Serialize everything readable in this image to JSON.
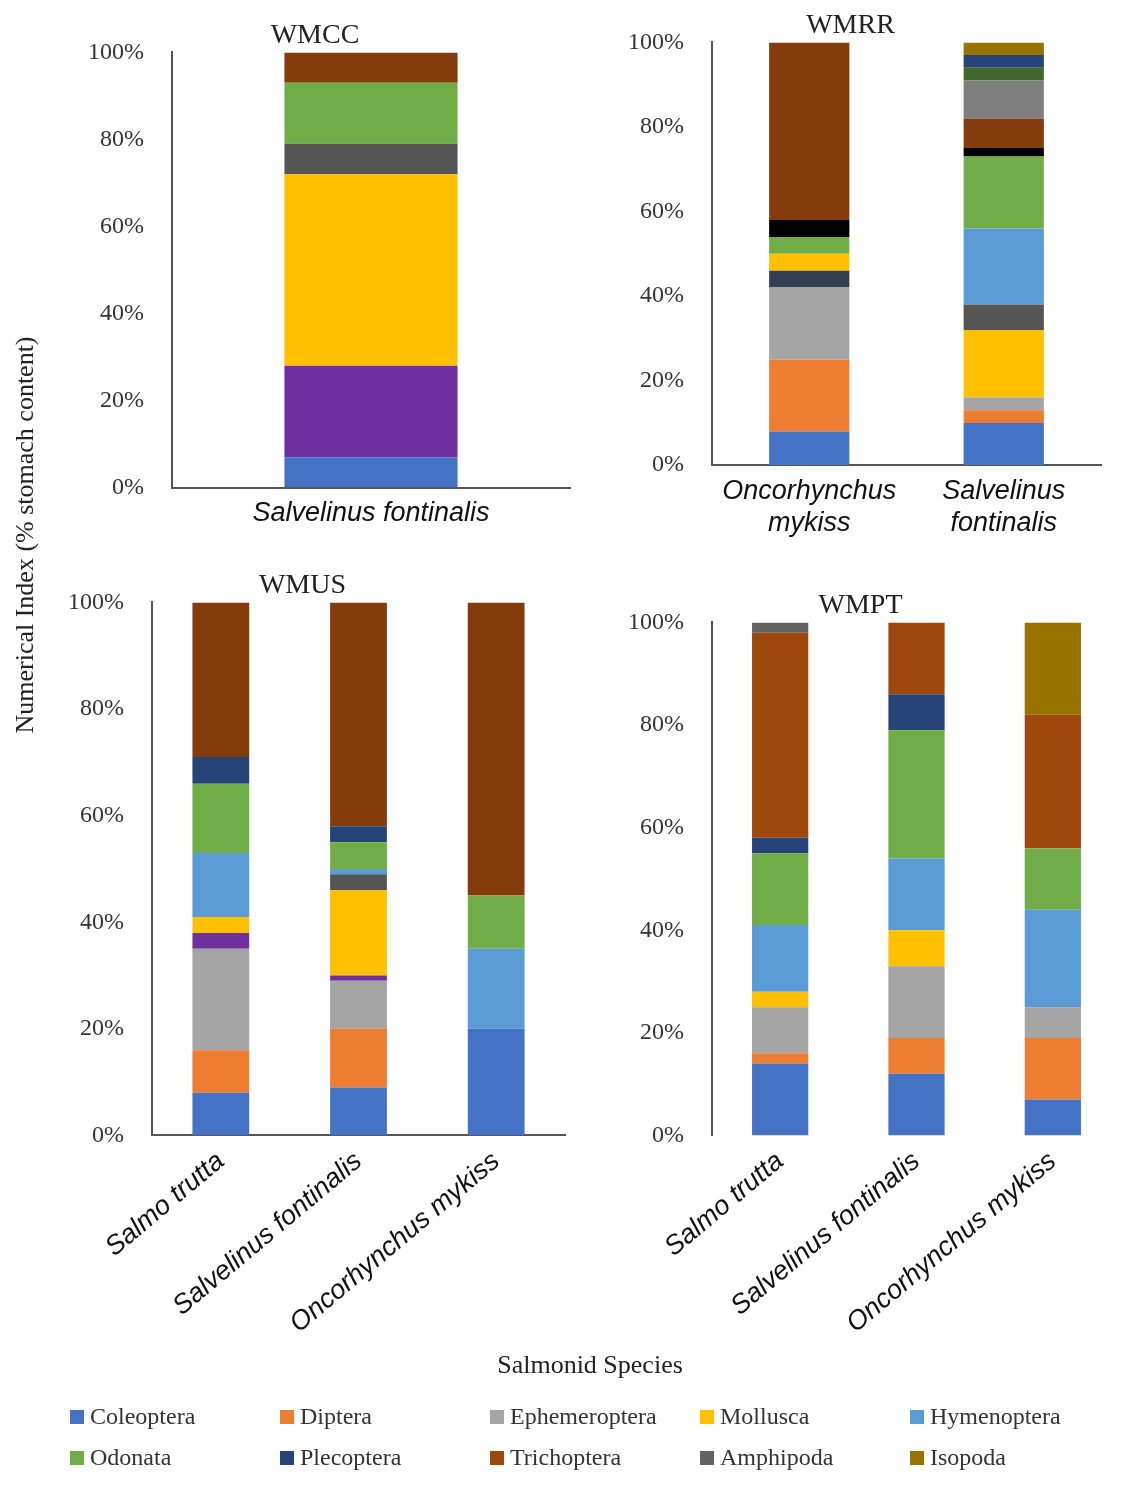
{
  "chart_data": [
    {
      "type": "bar",
      "title": "WMCC",
      "categories": [
        "Salvelinus fontinalis"
      ],
      "stacked": true,
      "ylim": [
        0,
        100
      ],
      "yticks": [
        {
          "value": 0,
          "label": "0%"
        },
        {
          "value": 20,
          "label": "20%"
        },
        {
          "value": 40,
          "label": "40%"
        },
        {
          "value": 60,
          "label": "60%"
        },
        {
          "value": 80,
          "label": "80%"
        },
        {
          "value": 100,
          "label": "100%"
        }
      ],
      "series": [
        {
          "color": "#4472c4",
          "values": [
            7
          ]
        },
        {
          "color": "#7030a0",
          "values": [
            21
          ]
        },
        {
          "color": "#ffc000",
          "values": [
            44
          ]
        },
        {
          "color": "#555555",
          "values": [
            7
          ]
        },
        {
          "color": "#70ad47",
          "values": [
            14
          ]
        },
        {
          "color": "#843c0c",
          "values": [
            7
          ]
        }
      ]
    },
    {
      "type": "bar",
      "title": "WMRR",
      "categories": [
        "Oncorhynchus mykiss",
        "Salvelinus fontinalis"
      ],
      "stacked": true,
      "ylim": [
        0,
        100
      ],
      "yticks": [
        {
          "value": 0,
          "label": "0%"
        },
        {
          "value": 20,
          "label": "20%"
        },
        {
          "value": 40,
          "label": "40%"
        },
        {
          "value": 60,
          "label": "60%"
        },
        {
          "value": 80,
          "label": "80%"
        },
        {
          "value": 100,
          "label": "100%"
        }
      ],
      "series": [
        {
          "color": "#4472c4",
          "values": [
            8,
            10
          ]
        },
        {
          "color": "#ed7d31",
          "values": [
            17,
            3
          ]
        },
        {
          "color": "#a5a5a5",
          "values": [
            17,
            3
          ]
        },
        {
          "color": "#333f50",
          "values": [
            4,
            null
          ]
        },
        {
          "color": "#ffc000",
          "values": [
            4,
            16
          ]
        },
        {
          "color": "#555555",
          "values": [
            null,
            6
          ]
        },
        {
          "color": "#5b9bd5",
          "values": [
            null,
            18
          ]
        },
        {
          "color": "#70ad47",
          "values": [
            4,
            17
          ]
        },
        {
          "color": "#000000",
          "values": [
            4,
            2
          ]
        },
        {
          "color": "#843c0c",
          "values": [
            42,
            7
          ]
        },
        {
          "color": "#7f7f7f",
          "values": [
            null,
            9
          ]
        },
        {
          "color": "#43682b",
          "values": [
            null,
            3
          ]
        },
        {
          "color": "#264478",
          "values": [
            null,
            3
          ]
        },
        {
          "color": "#997300",
          "values": [
            null,
            3
          ]
        }
      ]
    },
    {
      "type": "bar",
      "title": "WMUS",
      "ylabel": "Numerical Index (% stomach content)",
      "categories": [
        "Salmo trutta",
        "Salvelinus fontinalis",
        "Oncorhynchus mykiss"
      ],
      "stacked": true,
      "ylim": [
        0,
        100
      ],
      "yticks": [
        {
          "value": 0,
          "label": "0%"
        },
        {
          "value": 20,
          "label": "20%"
        },
        {
          "value": 40,
          "label": "40%"
        },
        {
          "value": 60,
          "label": "60%"
        },
        {
          "value": 80,
          "label": "80%"
        },
        {
          "value": 100,
          "label": "100%"
        }
      ],
      "series": [
        {
          "color": "#4472c4",
          "values": [
            8,
            9,
            20
          ]
        },
        {
          "color": "#ed7d31",
          "values": [
            8,
            11,
            null
          ]
        },
        {
          "color": "#a5a5a5",
          "values": [
            19,
            9,
            null
          ]
        },
        {
          "color": "#7030a0",
          "values": [
            3,
            1,
            null
          ]
        },
        {
          "color": "#ffc000",
          "values": [
            3,
            16,
            null
          ]
        },
        {
          "color": "#555555",
          "values": [
            null,
            3,
            null
          ]
        },
        {
          "color": "#5b9bd5",
          "values": [
            12,
            1,
            15
          ]
        },
        {
          "color": "#70ad47",
          "values": [
            13,
            5,
            10
          ]
        },
        {
          "color": "#264478",
          "values": [
            5,
            3,
            null
          ]
        },
        {
          "color": "#843c0c",
          "values": [
            29,
            42,
            55
          ]
        }
      ]
    },
    {
      "type": "bar",
      "title": "WMPT",
      "xlabel": "Salmonid Species",
      "categories": [
        "Salmo trutta",
        "Salvelinus fontinalis",
        "Oncorhynchus mykiss"
      ],
      "stacked": true,
      "legend": "bottom",
      "ylim": [
        0,
        100
      ],
      "yticks": [
        {
          "value": 0,
          "label": "0%"
        },
        {
          "value": 20,
          "label": "20%"
        },
        {
          "value": 40,
          "label": "40%"
        },
        {
          "value": 60,
          "label": "60%"
        },
        {
          "value": 80,
          "label": "80%"
        },
        {
          "value": 100,
          "label": "100%"
        }
      ],
      "series": [
        {
          "name": "Coleoptera",
          "color": "#4472c4",
          "values": [
            14,
            12,
            7
          ]
        },
        {
          "name": "Diptera",
          "color": "#ed7d31",
          "values": [
            2,
            7,
            12
          ]
        },
        {
          "name": "Ephemeroptera",
          "color": "#a5a5a5",
          "values": [
            9,
            14,
            6
          ]
        },
        {
          "name": "Mollusca",
          "color": "#ffc000",
          "values": [
            3,
            7,
            null
          ]
        },
        {
          "name": "Hymenoptera",
          "color": "#5b9bd5",
          "values": [
            13,
            14,
            19
          ]
        },
        {
          "name": "Odonata",
          "color": "#70ad47",
          "values": [
            14,
            25,
            12
          ]
        },
        {
          "name": "Plecoptera",
          "color": "#264478",
          "values": [
            3,
            7,
            null
          ]
        },
        {
          "name": "Trichoptera",
          "color": "#9e480e",
          "values": [
            40,
            14,
            26
          ]
        },
        {
          "name": "Amphipoda",
          "color": "#636363",
          "values": [
            2,
            null,
            null
          ]
        },
        {
          "name": "Isopoda",
          "color": "#997300",
          "values": [
            null,
            null,
            18
          ]
        }
      ]
    }
  ]
}
